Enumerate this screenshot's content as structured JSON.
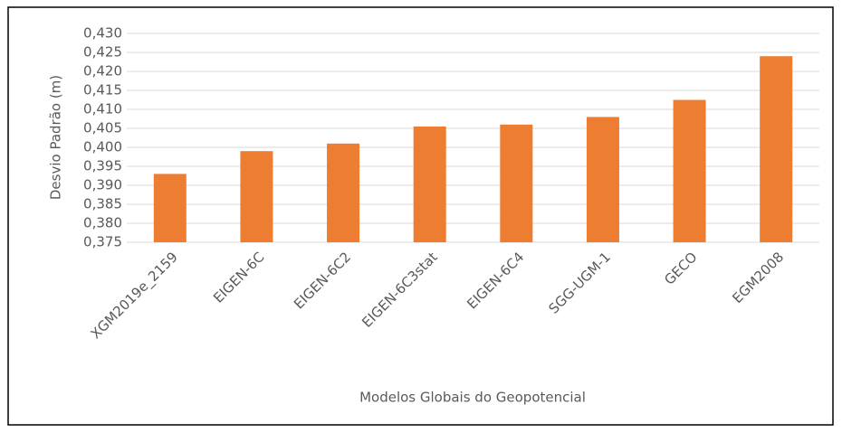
{
  "chart_data": {
    "type": "bar",
    "y_label": "Desvio Padrão (m)",
    "x_label": "Modelos Globais do Geopotencial",
    "categories": [
      "XGM2019e_2159",
      "EIGEN-6C",
      "EIGEN-6C2",
      "EIGEN-6C3stat",
      "EIGEN-6C4",
      "SGG-UGM-1",
      "GECO",
      "EGM2008"
    ],
    "values": [
      0.393,
      0.399,
      0.401,
      0.4055,
      0.406,
      0.408,
      0.4125,
      0.424
    ],
    "color": "#ed7d31",
    "ylim": [
      0.375,
      0.43
    ],
    "yticks": [
      {
        "value": 0.375,
        "label": "0,375"
      },
      {
        "value": 0.38,
        "label": "0,380"
      },
      {
        "value": 0.385,
        "label": "0,385"
      },
      {
        "value": 0.39,
        "label": "0,390"
      },
      {
        "value": 0.395,
        "label": "0,395"
      },
      {
        "value": 0.4,
        "label": "0,400"
      },
      {
        "value": 0.405,
        "label": "0,405"
      },
      {
        "value": 0.41,
        "label": "0,410"
      },
      {
        "value": 0.415,
        "label": "0,415"
      },
      {
        "value": 0.42,
        "label": "0,420"
      },
      {
        "value": 0.425,
        "label": "0,425"
      },
      {
        "value": 0.43,
        "label": "0,430"
      }
    ],
    "grid": true
  }
}
